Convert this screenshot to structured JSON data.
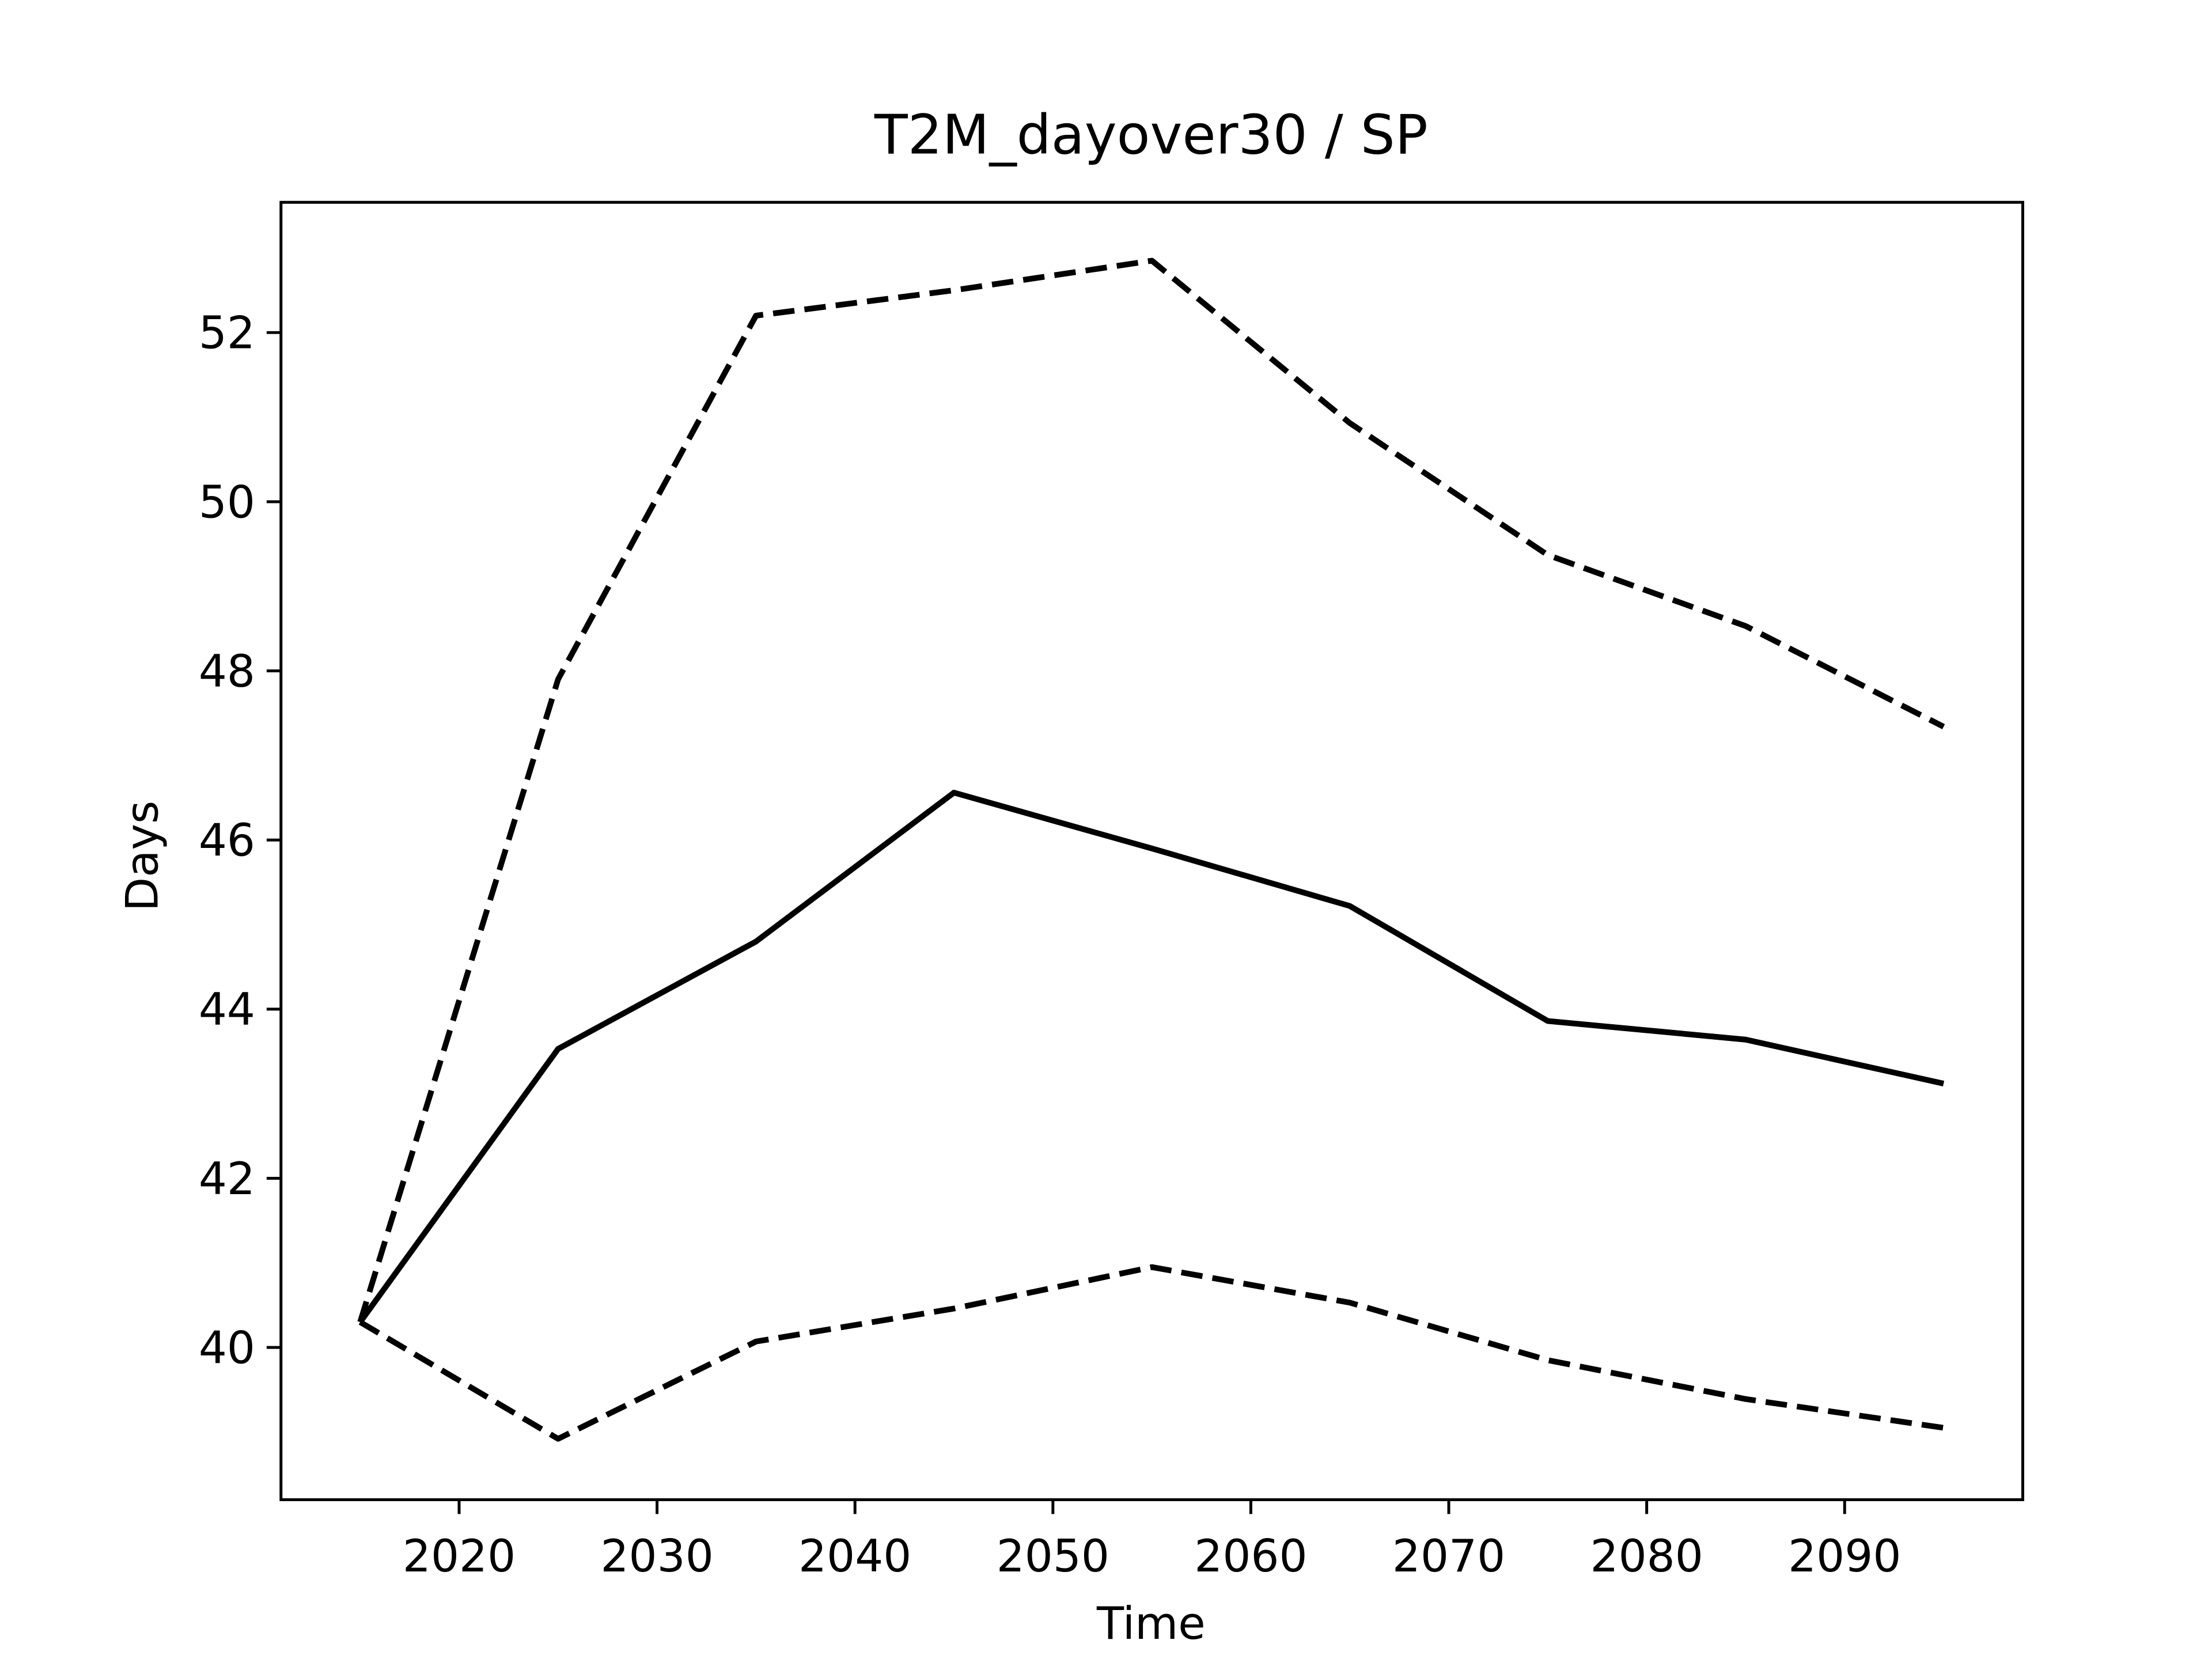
{
  "chart_data": {
    "type": "line",
    "title": "T2M_dayover30 / SP",
    "x_label": "Time",
    "y_label": "Days",
    "x": [
      2015,
      2025,
      2035,
      2045,
      2055,
      2065,
      2075,
      2085,
      2095
    ],
    "series": [
      {
        "color": "#000000",
        "dash": "solid",
        "values": [
          40.3,
          43.53,
          44.8,
          46.56,
          45.9,
          45.22,
          43.86,
          43.64,
          43.12
        ]
      },
      {
        "color": "#000000",
        "dash": "dashed",
        "values": [
          40.3,
          47.9,
          52.2,
          52.5,
          52.85,
          50.93,
          49.37,
          48.53,
          47.34
        ]
      },
      {
        "color": "#000000",
        "dash": "dashed",
        "values": [
          40.3,
          38.92,
          40.07,
          40.46,
          40.95,
          40.53,
          39.85,
          39.39,
          39.05
        ]
      }
    ],
    "xlim": [
      2011,
      2099
    ],
    "xticks": [
      2020,
      2030,
      2040,
      2050,
      2060,
      2070,
      2080,
      2090
    ],
    "ylim": [
      38.2,
      53.54
    ],
    "yticks": [
      40,
      42,
      44,
      46,
      48,
      50,
      52
    ],
    "grid": false
  }
}
